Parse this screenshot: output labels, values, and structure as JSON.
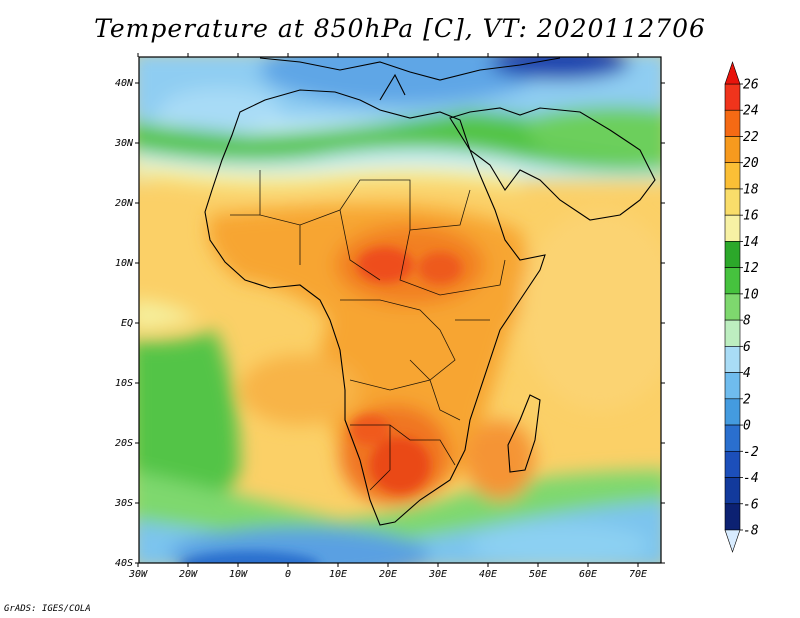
{
  "title": "Temperature at 850hPa [C], VT: 2020112706",
  "credit": "GrADS: IGES/COLA",
  "map": {
    "lon_ticks": [
      "30W",
      "20W",
      "10W",
      "0",
      "10E",
      "20E",
      "30E",
      "40E",
      "50E",
      "60E",
      "70E"
    ],
    "lat_ticks": [
      "40N",
      "30N",
      "20N",
      "10N",
      "EQ",
      "10S",
      "20S",
      "30S",
      "40S"
    ]
  },
  "colorbar": {
    "levels": [
      "26",
      "24",
      "22",
      "20",
      "18",
      "16",
      "14",
      "12",
      "10",
      "8",
      "6",
      "4",
      "2",
      "0",
      "-2",
      "-4",
      "-6",
      "-8"
    ],
    "colors": [
      "#f0341c",
      "#f56a14",
      "#f79a1e",
      "#fbbf36",
      "#f9dd6a",
      "#f7f1a4",
      "#2ca82a",
      "#46c23e",
      "#7ed86e",
      "#bdeec0",
      "#a9dcf6",
      "#6fbcee",
      "#449bdf",
      "#2a6fce",
      "#1c4fba",
      "#123a9c",
      "#0c2172"
    ],
    "max_color": "#e8140c",
    "min_color": "#d8ecff"
  }
}
